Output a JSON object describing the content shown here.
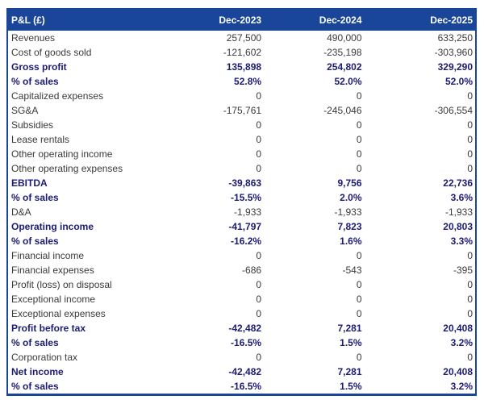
{
  "colors": {
    "header_bg": "#1a4699",
    "table_border": "#1a4699",
    "emphasis_text": "#1b1b75",
    "body_text": "#3a3a3a",
    "header_text": "#ffffff"
  },
  "chart_data": {
    "type": "table",
    "title": "P&L (£)",
    "columns": [
      "P&L (£)",
      "Dec-2023",
      "Dec-2024",
      "Dec-2025"
    ],
    "rows": [
      {
        "label": "Revenues",
        "values": [
          "257,500",
          "490,000",
          "633,250"
        ],
        "emphasis": false
      },
      {
        "label": "Cost of goods sold",
        "values": [
          "-121,602",
          "-235,198",
          "-303,960"
        ],
        "emphasis": false
      },
      {
        "label": "Gross profit",
        "values": [
          "135,898",
          "254,802",
          "329,290"
        ],
        "emphasis": true
      },
      {
        "label": "% of sales",
        "values": [
          "52.8%",
          "52.0%",
          "52.0%"
        ],
        "emphasis": true
      },
      {
        "label": "Capitalized expenses",
        "values": [
          "0",
          "0",
          "0"
        ],
        "emphasis": false
      },
      {
        "label": "SG&A",
        "values": [
          "-175,761",
          "-245,046",
          "-306,554"
        ],
        "emphasis": false
      },
      {
        "label": "Subsidies",
        "values": [
          "0",
          "0",
          "0"
        ],
        "emphasis": false
      },
      {
        "label": "Lease rentals",
        "values": [
          "0",
          "0",
          "0"
        ],
        "emphasis": false
      },
      {
        "label": "Other operating income",
        "values": [
          "0",
          "0",
          "0"
        ],
        "emphasis": false
      },
      {
        "label": "Other operating expenses",
        "values": [
          "0",
          "0",
          "0"
        ],
        "emphasis": false
      },
      {
        "label": "EBITDA",
        "values": [
          "-39,863",
          "9,756",
          "22,736"
        ],
        "emphasis": true
      },
      {
        "label": "% of sales",
        "values": [
          "-15.5%",
          "2.0%",
          "3.6%"
        ],
        "emphasis": true
      },
      {
        "label": "D&A",
        "values": [
          "-1,933",
          "-1,933",
          "-1,933"
        ],
        "emphasis": false
      },
      {
        "label": "Operating income",
        "values": [
          "-41,797",
          "7,823",
          "20,803"
        ],
        "emphasis": true
      },
      {
        "label": "% of sales",
        "values": [
          "-16.2%",
          "1.6%",
          "3.3%"
        ],
        "emphasis": true
      },
      {
        "label": "Financial income",
        "values": [
          "0",
          "0",
          "0"
        ],
        "emphasis": false
      },
      {
        "label": "Financial expenses",
        "values": [
          "-686",
          "-543",
          "-395"
        ],
        "emphasis": false
      },
      {
        "label": "Profit (loss) on disposal",
        "values": [
          "0",
          "0",
          "0"
        ],
        "emphasis": false
      },
      {
        "label": "Exceptional income",
        "values": [
          "0",
          "0",
          "0"
        ],
        "emphasis": false
      },
      {
        "label": "Exceptional expenses",
        "values": [
          "0",
          "0",
          "0"
        ],
        "emphasis": false
      },
      {
        "label": "Profit before tax",
        "values": [
          "-42,482",
          "7,281",
          "20,408"
        ],
        "emphasis": true
      },
      {
        "label": "% of sales",
        "values": [
          "-16.5%",
          "1.5%",
          "3.2%"
        ],
        "emphasis": true
      },
      {
        "label": "Corporation tax",
        "values": [
          "0",
          "0",
          "0"
        ],
        "emphasis": false
      },
      {
        "label": "Net income",
        "values": [
          "-42,482",
          "7,281",
          "20,408"
        ],
        "emphasis": true
      },
      {
        "label": "% of sales",
        "values": [
          "-16.5%",
          "1.5%",
          "3.2%"
        ],
        "emphasis": true
      }
    ]
  }
}
